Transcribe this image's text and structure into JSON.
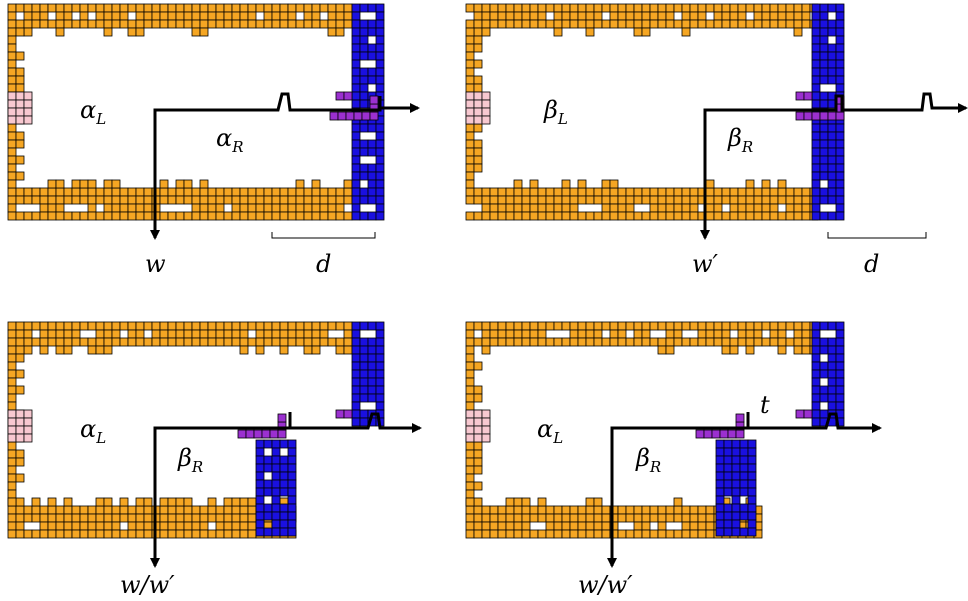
{
  "colors": {
    "orange": "#f5a623",
    "blue": "#1a10e0",
    "purple": "#9b30d0",
    "pink": "#f8c8d0",
    "stroke": "#000000",
    "background": "#ffffff"
  },
  "panels": [
    {
      "id": "top-left",
      "region_left_label": {
        "base": "α",
        "sub": "L"
      },
      "region_right_label": {
        "base": "α",
        "sub": "R"
      },
      "output_label": "w",
      "distance_label": "d"
    },
    {
      "id": "top-right",
      "region_left_label": {
        "base": "β",
        "sub": "L"
      },
      "region_right_label": {
        "base": "β",
        "sub": "R"
      },
      "output_label": "w′",
      "distance_label": "d"
    },
    {
      "id": "bottom-left",
      "region_left_label": {
        "base": "α",
        "sub": "L"
      },
      "region_right_label": {
        "base": "β",
        "sub": "R"
      },
      "output_label": "w/w′"
    },
    {
      "id": "bottom-right",
      "region_left_label": {
        "base": "α",
        "sub": "L"
      },
      "region_right_label": {
        "base": "β",
        "sub": "R"
      },
      "output_label": "w/w′",
      "extra_label": "t"
    }
  ]
}
